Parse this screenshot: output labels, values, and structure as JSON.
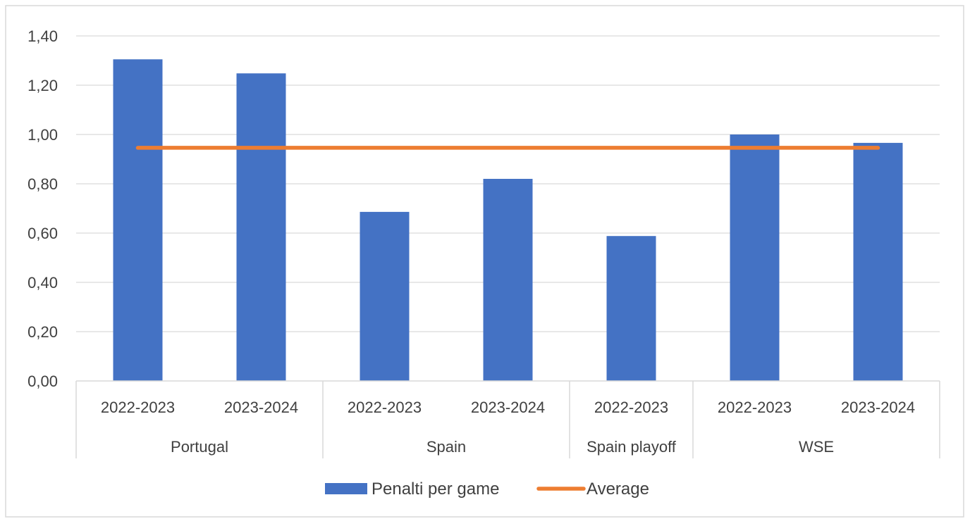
{
  "chart_data": {
    "type": "bar",
    "title": "",
    "xlabel": "",
    "ylabel": "",
    "ylim": [
      0,
      1.4
    ],
    "yticks": [
      "0,00",
      "0,20",
      "0,40",
      "0,60",
      "0,80",
      "1,00",
      "1,20",
      "1,40"
    ],
    "categories": [
      {
        "season": "2022-2023",
        "group": "Portugal"
      },
      {
        "season": "2023-2024",
        "group": "Portugal"
      },
      {
        "season": "2022-2023",
        "group": "Spain"
      },
      {
        "season": "2023-2024",
        "group": "Spain"
      },
      {
        "season": "2022-2023",
        "group": "Spain playoff"
      },
      {
        "season": "2022-2023",
        "group": "WSE"
      },
      {
        "season": "2023-2024",
        "group": "WSE"
      }
    ],
    "groups": [
      "Portugal",
      "Spain",
      "Spain playoff",
      "WSE"
    ],
    "series": [
      {
        "name": "Penalti per game",
        "type": "bar",
        "color": "#4472C4",
        "values": [
          1.305,
          1.248,
          0.686,
          0.82,
          0.588,
          1.0,
          0.966
        ]
      },
      {
        "name": "Average",
        "type": "line",
        "color": "#ED7D31",
        "values": [
          0.946,
          0.946,
          0.946,
          0.946,
          0.946,
          0.946,
          0.946
        ]
      }
    ],
    "grid": true,
    "legend_position": "bottom"
  }
}
